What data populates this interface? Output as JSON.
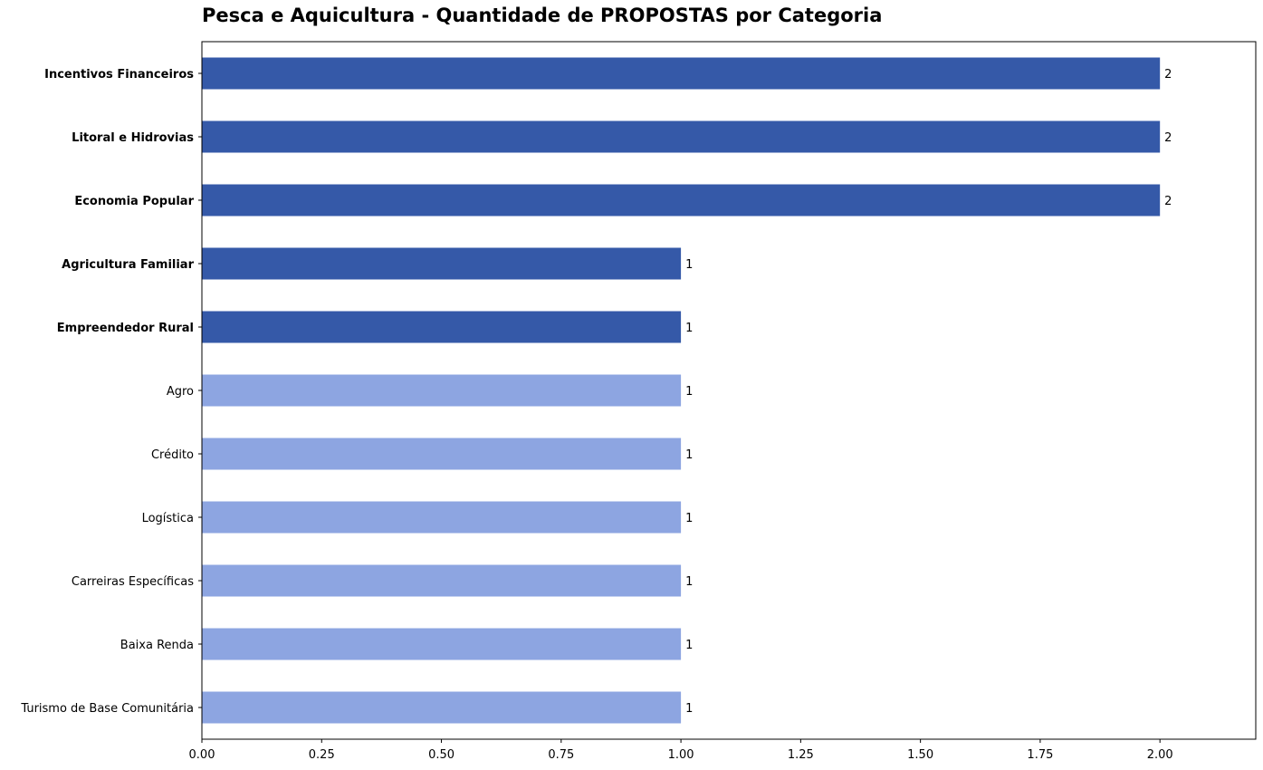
{
  "chart_data": {
    "type": "bar",
    "orientation": "horizontal",
    "title": "Pesca e Aquicultura - Quantidade de PROPOSTAS por Categoria",
    "xlabel": "",
    "ylabel": "",
    "xlim": [
      0,
      2.2
    ],
    "x_ticks": [
      "0.00",
      "0.25",
      "0.50",
      "0.75",
      "1.00",
      "1.25",
      "1.50",
      "1.75",
      "2.00"
    ],
    "x_tick_values": [
      0,
      0.25,
      0.5,
      0.75,
      1.0,
      1.25,
      1.5,
      1.75,
      2.0
    ],
    "grid": false,
    "legend": "none",
    "categories": [
      "Incentivos Financeiros",
      "Litoral e Hidrovias",
      "Economia Popular",
      "Agricultura Familiar",
      "Empreendedor Rural",
      "Agro",
      "Crédito",
      "Logística",
      "Carreiras Específicas",
      "Baixa Renda",
      "Turismo de Base Comunitária"
    ],
    "values": [
      2,
      2,
      2,
      1,
      1,
      1,
      1,
      1,
      1,
      1,
      1
    ],
    "value_labels": [
      "2",
      "2",
      "2",
      "1",
      "1",
      "1",
      "1",
      "1",
      "1",
      "1",
      "1"
    ],
    "highlighted": [
      true,
      true,
      true,
      true,
      true,
      false,
      false,
      false,
      false,
      false,
      false
    ],
    "colors": {
      "highlight": "#3559a8",
      "normal": "#8da5e1",
      "axis": "#000000",
      "text": "#000000"
    }
  }
}
